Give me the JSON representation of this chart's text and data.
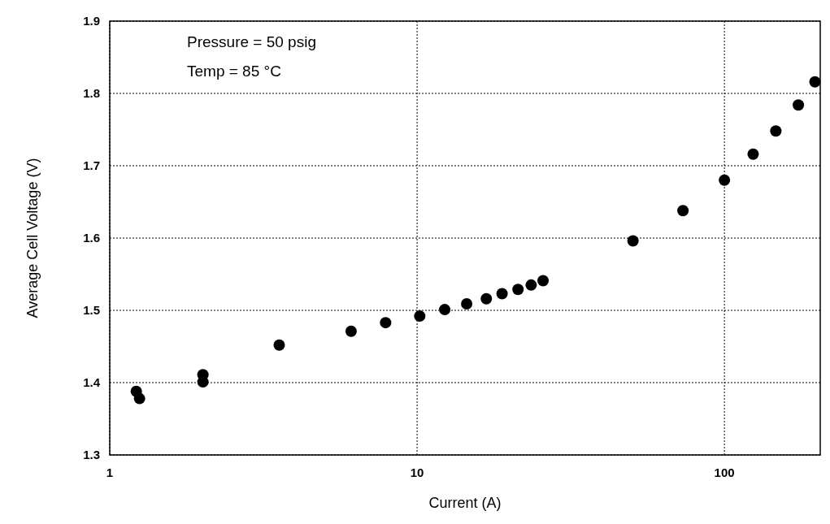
{
  "chart_data": {
    "type": "scatter",
    "xlabel": "Current (A)",
    "ylabel": "Average Cell Voltage (V)",
    "log": "x",
    "xlim": [
      1,
      205
    ],
    "xticks": [
      1,
      10,
      100
    ],
    "ylim": [
      1.3,
      1.9
    ],
    "yticks": [
      1.3,
      1.4,
      1.5,
      1.6,
      1.7,
      1.8,
      1.9
    ],
    "grid": true,
    "marker": "circle",
    "annotations": [
      "Pressure = 50 psig",
      "Temp = 85 °C"
    ],
    "series": [
      {
        "color": "#000000",
        "x": [
          1.22,
          1.25,
          2.01,
          2.01,
          3.56,
          6.1,
          7.9,
          10.2,
          12.3,
          14.5,
          16.8,
          18.9,
          21.3,
          23.5,
          25.7,
          50.4,
          73.3,
          100,
          124,
          147,
          174,
          197
        ],
        "values": [
          1.388,
          1.378,
          1.411,
          1.401,
          1.452,
          1.471,
          1.483,
          1.492,
          1.501,
          1.509,
          1.516,
          1.523,
          1.529,
          1.535,
          1.541,
          1.596,
          1.638,
          1.68,
          1.716,
          1.748,
          1.784,
          1.816
        ]
      }
    ]
  }
}
